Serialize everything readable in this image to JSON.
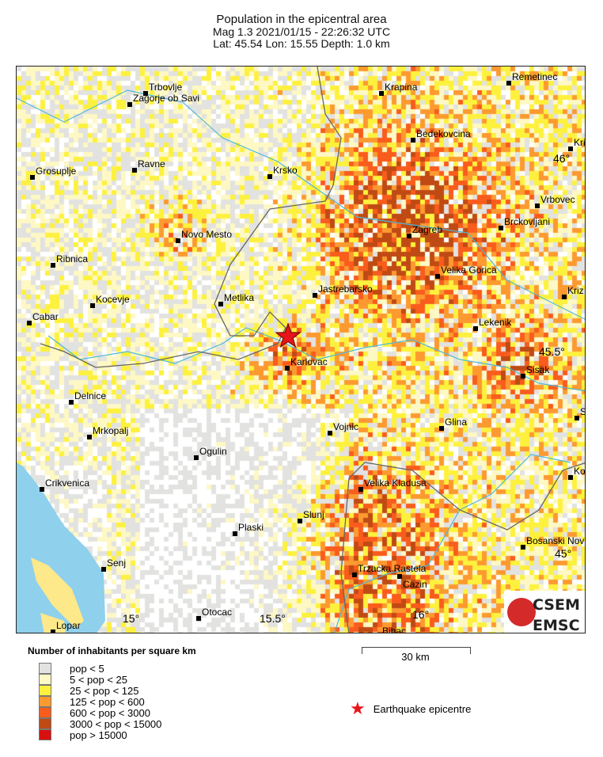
{
  "title": {
    "line1": "Population in the epicentral area",
    "line2": "Mag 1.3  2021/01/15 - 22:26:32 UTC",
    "line3": "Lat: 45.54    Lon:  15.55     Depth:  1.0 km"
  },
  "colors": {
    "sea": "#8fd0ec",
    "river": "#4fb8d8",
    "border": "#666666",
    "epicentre": "#e8141c"
  },
  "cities": [
    "Trbovlje",
    "Zagorje ob Savi",
    "Krapina",
    "Remetinec",
    "Bedekovcina",
    "Kriz",
    "Grosuplje",
    "Ravne",
    "Krsko",
    "Vrbovec",
    "Zagreb",
    "Brckovljani",
    "Novo Mesto",
    "Ribnica",
    "Velika Gorica",
    "Jastrebarsko",
    "Metlika",
    "Kocevje",
    "Kriz",
    "Cabar",
    "Lekenik",
    "Karlovac",
    "Sisak",
    "Delnice",
    "Vojnic",
    "Glina",
    "Mrkopalj",
    "S",
    "Ogulin",
    "Kos",
    "Crikvenica",
    "Velika Kladusa",
    "Slunj",
    "Plaski",
    "Bosanski Nov",
    "Senj",
    "Trzacka Rastela",
    "Cazin",
    "Otocac",
    "Lopar",
    "Bihac"
  ],
  "ticks": {
    "lat": [
      "46°",
      "45.5°",
      "45°"
    ],
    "lon": [
      "15°",
      "15.5°",
      "16°"
    ]
  },
  "legend": {
    "title": "Number of inhabitants per square km",
    "items": [
      {
        "label": "pop < 5",
        "color": "#e2e2e0"
      },
      {
        "label": "5 < pop < 25",
        "color": "#fdf8c4"
      },
      {
        "label": "25 < pop < 125",
        "color": "#fdf13e"
      },
      {
        "label": "125 < pop < 600",
        "color": "#fc9a30"
      },
      {
        "label": "600 < pop < 3000",
        "color": "#f95c1c"
      },
      {
        "label": "3000 < pop < 15000",
        "color": "#c04a14"
      },
      {
        "label": "pop > 15000",
        "color": "#d81010"
      }
    ]
  },
  "scale": "30 km",
  "epicentre_label": "Earthquake epicentre",
  "logo": {
    "top": "CSEM",
    "bottom": "EMSC"
  }
}
